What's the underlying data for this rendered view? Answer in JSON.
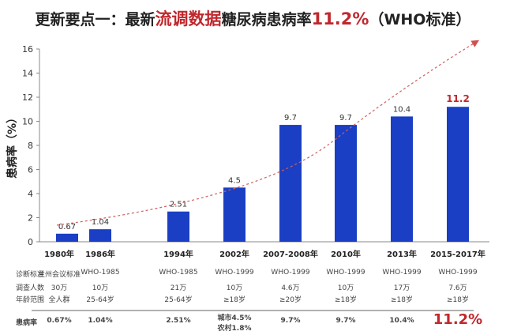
{
  "title": {
    "part1": "更新要点一：最新",
    "part2": "流调数据",
    "part3": "糖尿病患病率",
    "part4": "11.2%",
    "part5": "（WHO标准）"
  },
  "chart_data": {
    "type": "bar",
    "title": "",
    "ylabel": "患病率（%）",
    "xlabel": "",
    "ylim": [
      0,
      16
    ],
    "yticks": [
      0,
      2,
      4,
      6,
      8,
      10,
      12,
      14,
      16
    ],
    "categories": [
      "1980年",
      "1986年",
      "1994年",
      "2002年",
      "2007-2008年",
      "2010年",
      "2013年",
      "2015-2017年"
    ],
    "values": [
      0.67,
      1.04,
      2.51,
      4.5,
      9.7,
      9.7,
      10.4,
      11.2
    ],
    "labels": [
      "0.67",
      "1.04",
      "2.51",
      "4.5",
      "9.7",
      "9.7",
      "10.4",
      "11.2"
    ],
    "bar_color": "#1a3fc4",
    "highlight_label_color": "#c0282d",
    "trend_line": "dashed red arrow",
    "grid": false
  },
  "table": {
    "row_labels": [
      "诊断标准",
      "调查人数",
      "年龄范围",
      "患病率"
    ],
    "rows": [
      [
        "兰州会议标准",
        "WHO-1985",
        "WHO-1985",
        "WHO-1999",
        "WHO-1999",
        "WHO-1999",
        "WHO-1999",
        "WHO-1999"
      ],
      [
        "30万",
        "10万",
        "21万",
        "10万",
        "4.6万",
        "10万",
        "17万",
        "7.6万"
      ],
      [
        "全人群",
        "25-64岁",
        "25-64岁",
        "≥18岁",
        "≥20岁",
        "≥18岁",
        "≥18岁",
        "≥18岁"
      ],
      [
        "0.67%",
        "1.04%",
        "2.51%",
        "城市4.5%\n农村1.8%",
        "9.7%",
        "9.7%",
        "10.4%",
        "11.2%"
      ]
    ]
  }
}
